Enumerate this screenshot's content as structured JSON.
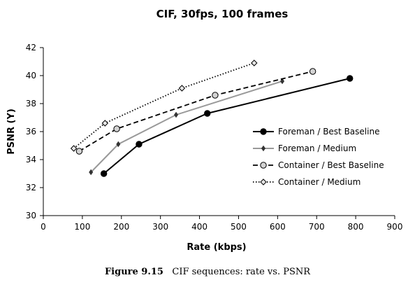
{
  "chart_data": {
    "type": "line",
    "title": "CIF, 30fps, 100 frames",
    "xlabel": "Rate (kbps)",
    "ylabel": "PSNR (Y)",
    "xlim": [
      0,
      900
    ],
    "ylim": [
      30,
      42
    ],
    "xticks": [
      0,
      100,
      200,
      300,
      400,
      500,
      600,
      700,
      800,
      900
    ],
    "xtick_labels": [
      "0",
      "100",
      "200",
      "300",
      "400",
      "500",
      "600",
      "700",
      "800",
      "900"
    ],
    "yticks": [
      30,
      32,
      34,
      36,
      38,
      40,
      42
    ],
    "ytick_labels": [
      "30",
      "32",
      "34",
      "36",
      "38",
      "40",
      "42"
    ],
    "grid": false,
    "legend_position": "right-center",
    "series": [
      {
        "name": "Foreman / Best Baseline",
        "color": "#000000",
        "dash": "solid",
        "marker": "filled-circle",
        "x": [
          155,
          245,
          420,
          785
        ],
        "y": [
          33.0,
          35.1,
          37.3,
          39.8
        ]
      },
      {
        "name": "Foreman / Medium",
        "color": "#999999",
        "dash": "solid",
        "marker": "diamond",
        "x": [
          122,
          192,
          340,
          612
        ],
        "y": [
          33.1,
          35.1,
          37.2,
          39.6
        ]
      },
      {
        "name": "Container / Best Baseline",
        "color": "#000000",
        "dash": "dashed",
        "marker": "open-circle",
        "x": [
          92,
          188,
          440,
          690
        ],
        "y": [
          34.6,
          36.2,
          38.6,
          40.3
        ]
      },
      {
        "name": "Container / Medium",
        "color": "#000000",
        "dash": "dotted",
        "marker": "open-diamond",
        "x": [
          78,
          158,
          355,
          540
        ],
        "y": [
          34.8,
          36.6,
          39.1,
          40.9
        ]
      }
    ]
  },
  "caption": {
    "label": "Figure 9.15",
    "text": "CIF sequences: rate vs. PSNR"
  }
}
